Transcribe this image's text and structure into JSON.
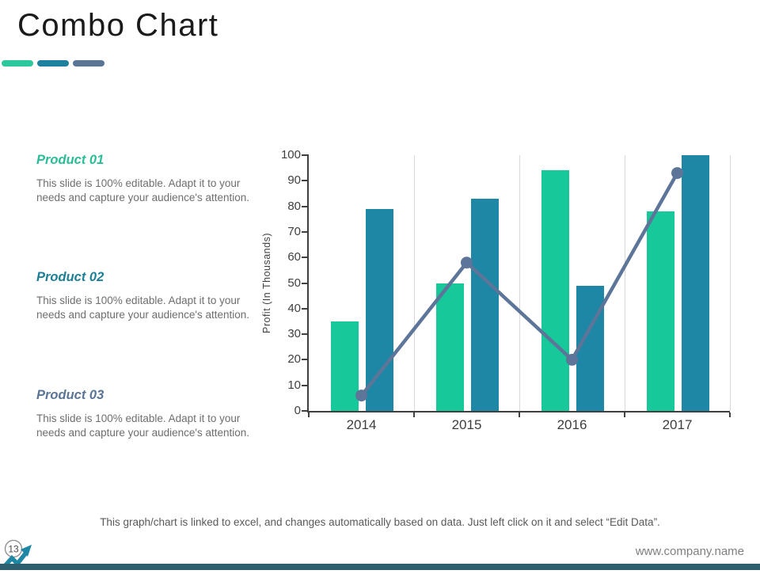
{
  "slide": {
    "title": "Combo Chart"
  },
  "accent_bars": [
    {
      "name": "accent-green",
      "color": "#2cc89c"
    },
    {
      "name": "accent-teal",
      "color": "#1e7f9e"
    },
    {
      "name": "accent-slate",
      "color": "#5a7596"
    }
  ],
  "products": [
    {
      "name": "Product 01",
      "color": "#2abd98",
      "description": "This slide is 100% editable. Adapt it to your needs and capture your audience's attention."
    },
    {
      "name": "Product 02",
      "color": "#1d7f97",
      "description": "This slide is 100% editable. Adapt it to your needs and capture your audience's attention."
    },
    {
      "name": "Product 03",
      "color": "#5a7596",
      "description": "This slide is 100% editable. Adapt it to your needs and capture your audience's attention."
    }
  ],
  "chart_data": {
    "type": "combo",
    "categories": [
      "2014",
      "2015",
      "2016",
      "2017"
    ],
    "series": [
      {
        "name": "Product 01",
        "type": "bar",
        "color": "#17c89a",
        "values": [
          35,
          50,
          94,
          78
        ]
      },
      {
        "name": "Product 02",
        "type": "bar",
        "color": "#1d87a5",
        "values": [
          79,
          83,
          49,
          100
        ]
      },
      {
        "name": "Product 03",
        "type": "line",
        "color": "#5d7598",
        "values": [
          6,
          58,
          20,
          93
        ]
      }
    ],
    "title": "",
    "xlabel": "",
    "ylabel": "Profit (In Thousands)",
    "ylim": [
      0,
      100
    ],
    "ytick_step": 10,
    "grid": "vertical-category-boundaries",
    "legend_position": "none"
  },
  "footer": {
    "note": "This graph/chart is linked to excel, and changes automatically based on data. Just left click on it and select “Edit Data”.",
    "page_number": "13",
    "website": "www.company.name"
  },
  "colors": {
    "axis_text": "#3f3f3f",
    "gridline": "#d9d9d9",
    "bottom_bar": "#2e5f6e",
    "page_icon_teal": "#1e87a5"
  }
}
